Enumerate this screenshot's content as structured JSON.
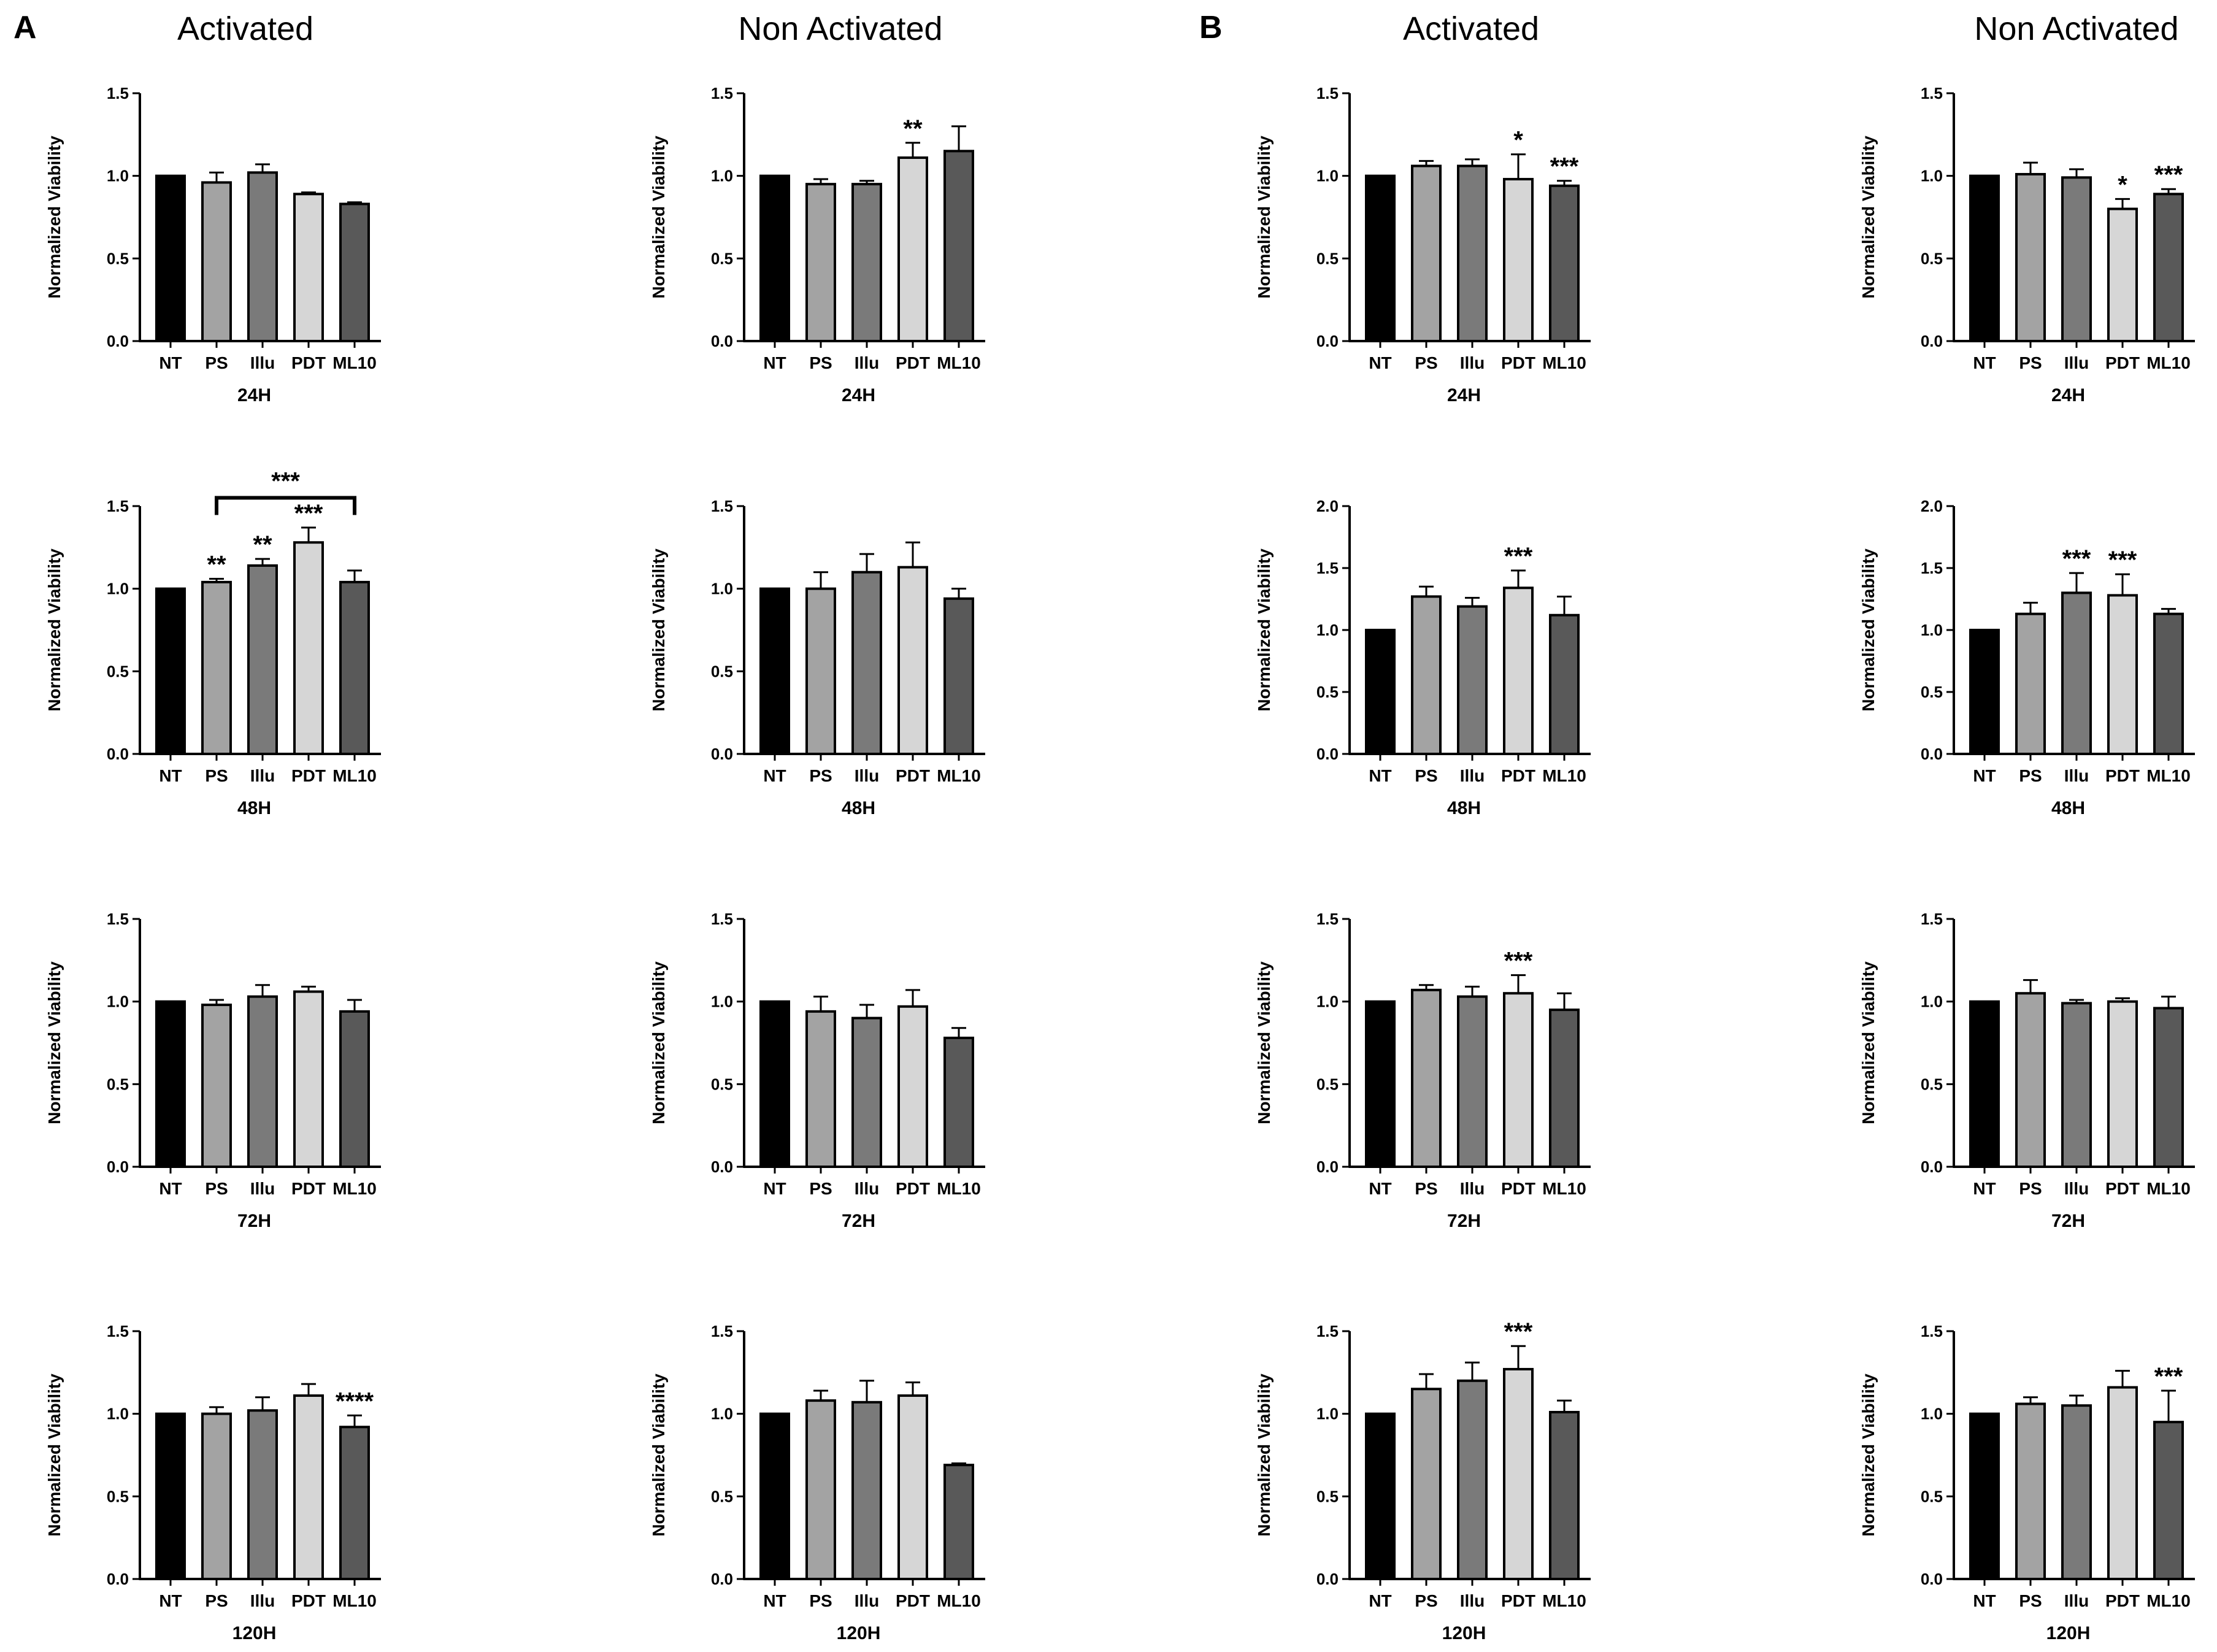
{
  "panels": [
    {
      "letter": "A",
      "columns": [
        "Activated",
        "Non Activated"
      ]
    },
    {
      "letter": "B",
      "columns": [
        "Activated",
        "Non Activated"
      ]
    }
  ],
  "colors": {
    "NT": "#000000",
    "PS": "#a3a3a3",
    "Illu": "#7a7a7a",
    "PDT": "#d6d6d6",
    "ML10": "#595959"
  },
  "chart_data": [
    {
      "type": "bar",
      "panel": "A",
      "column": "Activated",
      "xlabel": "24H",
      "ylabel": "Normalized Viability",
      "categories": [
        "NT",
        "PS",
        "Illu",
        "PDT",
        "ML10"
      ],
      "values": [
        1.0,
        0.96,
        1.02,
        0.89,
        0.83
      ],
      "errors": [
        0,
        0.06,
        0.05,
        0.01,
        0.01
      ],
      "significance": [
        "",
        "",
        "",
        "",
        ""
      ],
      "ylim": [
        0,
        1.5
      ],
      "yticks": [
        "0.0",
        "0.5",
        "1.0",
        "1.5"
      ],
      "bracket": null
    },
    {
      "type": "bar",
      "panel": "A",
      "column": "Non Activated",
      "xlabel": "24H",
      "ylabel": "Normalized Viability",
      "categories": [
        "NT",
        "PS",
        "Illu",
        "PDT",
        "ML10"
      ],
      "values": [
        1.0,
        0.95,
        0.95,
        1.11,
        1.15
      ],
      "errors": [
        0,
        0.03,
        0.02,
        0.09,
        0.15
      ],
      "significance": [
        "",
        "",
        "",
        "**",
        ""
      ],
      "ylim": [
        0,
        1.5
      ],
      "yticks": [
        "0.0",
        "0.5",
        "1.0",
        "1.5"
      ],
      "bracket": null
    },
    {
      "type": "bar",
      "panel": "B",
      "column": "Activated",
      "xlabel": "24H",
      "ylabel": "Normalized Viability",
      "categories": [
        "NT",
        "PS",
        "Illu",
        "PDT",
        "ML10"
      ],
      "values": [
        1.0,
        1.06,
        1.06,
        0.98,
        0.94
      ],
      "errors": [
        0,
        0.03,
        0.04,
        0.15,
        0.03
      ],
      "significance": [
        "",
        "",
        "",
        "*",
        "***"
      ],
      "ylim": [
        0,
        1.5
      ],
      "yticks": [
        "0.0",
        "0.5",
        "1.0",
        "1.5"
      ],
      "bracket": null
    },
    {
      "type": "bar",
      "panel": "B",
      "column": "Non Activated",
      "xlabel": "24H",
      "ylabel": "Normalized Viability",
      "categories": [
        "NT",
        "PS",
        "Illu",
        "PDT",
        "ML10"
      ],
      "values": [
        1.0,
        1.01,
        0.99,
        0.8,
        0.89
      ],
      "errors": [
        0,
        0.07,
        0.05,
        0.06,
        0.03
      ],
      "significance": [
        "",
        "",
        "",
        "*",
        "***"
      ],
      "ylim": [
        0,
        1.5
      ],
      "yticks": [
        "0.0",
        "0.5",
        "1.0",
        "1.5"
      ],
      "bracket": null
    },
    {
      "type": "bar",
      "panel": "A",
      "column": "Activated",
      "xlabel": "48H",
      "ylabel": "Normalized Viability",
      "categories": [
        "NT",
        "PS",
        "Illu",
        "PDT",
        "ML10"
      ],
      "values": [
        1.0,
        1.04,
        1.14,
        1.28,
        1.04
      ],
      "errors": [
        0,
        0.02,
        0.04,
        0.09,
        0.07
      ],
      "significance": [
        "",
        "**",
        "**",
        "***",
        ""
      ],
      "ylim": [
        0,
        1.5
      ],
      "yticks": [
        "0.0",
        "0.5",
        "1.0",
        "1.5"
      ],
      "bracket": {
        "from": "PS",
        "to": "ML10",
        "y": 1.55,
        "label": "***"
      }
    },
    {
      "type": "bar",
      "panel": "A",
      "column": "Non Activated",
      "xlabel": "48H",
      "ylabel": "Normalized Viability",
      "categories": [
        "NT",
        "PS",
        "Illu",
        "PDT",
        "ML10"
      ],
      "values": [
        1.0,
        1.0,
        1.1,
        1.13,
        0.94
      ],
      "errors": [
        0,
        0.1,
        0.11,
        0.15,
        0.06
      ],
      "significance": [
        "",
        "",
        "",
        "",
        ""
      ],
      "ylim": [
        0,
        1.5
      ],
      "yticks": [
        "0.0",
        "0.5",
        "1.0",
        "1.5"
      ],
      "bracket": null
    },
    {
      "type": "bar",
      "panel": "B",
      "column": "Activated",
      "xlabel": "48H",
      "ylabel": "Normalized Viability",
      "categories": [
        "NT",
        "PS",
        "Illu",
        "PDT",
        "ML10"
      ],
      "values": [
        1.0,
        1.27,
        1.19,
        1.34,
        1.12
      ],
      "errors": [
        0,
        0.08,
        0.07,
        0.14,
        0.15
      ],
      "significance": [
        "",
        "",
        "",
        "***",
        ""
      ],
      "ylim": [
        0,
        2.0
      ],
      "yticks": [
        "0.0",
        "0.5",
        "1.0",
        "1.5",
        "2.0"
      ],
      "bracket": null
    },
    {
      "type": "bar",
      "panel": "B",
      "column": "Non Activated",
      "xlabel": "48H",
      "ylabel": "Normalized Viability",
      "categories": [
        "NT",
        "PS",
        "Illu",
        "PDT",
        "ML10"
      ],
      "values": [
        1.0,
        1.13,
        1.3,
        1.28,
        1.13
      ],
      "errors": [
        0,
        0.09,
        0.16,
        0.17,
        0.04
      ],
      "significance": [
        "",
        "",
        "***",
        "***",
        ""
      ],
      "ylim": [
        0,
        2.0
      ],
      "yticks": [
        "0.0",
        "0.5",
        "1.0",
        "1.5",
        "2.0"
      ],
      "bracket": null
    },
    {
      "type": "bar",
      "panel": "A",
      "column": "Activated",
      "xlabel": "72H",
      "ylabel": "Normalized Viability",
      "categories": [
        "NT",
        "PS",
        "Illu",
        "PDT",
        "ML10"
      ],
      "values": [
        1.0,
        0.98,
        1.03,
        1.06,
        0.94
      ],
      "errors": [
        0,
        0.03,
        0.07,
        0.03,
        0.07
      ],
      "significance": [
        "",
        "",
        "",
        "",
        ""
      ],
      "ylim": [
        0,
        1.5
      ],
      "yticks": [
        "0.0",
        "0.5",
        "1.0",
        "1.5"
      ],
      "bracket": null
    },
    {
      "type": "bar",
      "panel": "A",
      "column": "Non Activated",
      "xlabel": "72H",
      "ylabel": "Normalized Viability",
      "categories": [
        "NT",
        "PS",
        "Illu",
        "PDT",
        "ML10"
      ],
      "values": [
        1.0,
        0.94,
        0.9,
        0.97,
        0.78
      ],
      "errors": [
        0,
        0.09,
        0.08,
        0.1,
        0.06
      ],
      "significance": [
        "",
        "",
        "",
        "",
        ""
      ],
      "ylim": [
        0,
        1.5
      ],
      "yticks": [
        "0.0",
        "0.5",
        "1.0",
        "1.5"
      ],
      "bracket": null
    },
    {
      "type": "bar",
      "panel": "B",
      "column": "Activated",
      "xlabel": "72H",
      "ylabel": "Normalized Viability",
      "categories": [
        "NT",
        "PS",
        "Illu",
        "PDT",
        "ML10"
      ],
      "values": [
        1.0,
        1.07,
        1.03,
        1.05,
        0.95
      ],
      "errors": [
        0,
        0.03,
        0.06,
        0.11,
        0.1
      ],
      "significance": [
        "",
        "",
        "",
        "***",
        ""
      ],
      "ylim": [
        0,
        1.5
      ],
      "yticks": [
        "0.0",
        "0.5",
        "1.0",
        "1.5"
      ],
      "bracket": null
    },
    {
      "type": "bar",
      "panel": "B",
      "column": "Non Activated",
      "xlabel": "72H",
      "ylabel": "Normalized Viability",
      "categories": [
        "NT",
        "PS",
        "Illu",
        "PDT",
        "ML10"
      ],
      "values": [
        1.0,
        1.05,
        0.99,
        1.0,
        0.96
      ],
      "errors": [
        0,
        0.08,
        0.02,
        0.02,
        0.07
      ],
      "significance": [
        "",
        "",
        "",
        "",
        ""
      ],
      "ylim": [
        0,
        1.5
      ],
      "yticks": [
        "0.0",
        "0.5",
        "1.0",
        "1.5"
      ],
      "bracket": null
    },
    {
      "type": "bar",
      "panel": "A",
      "column": "Activated",
      "xlabel": "120H",
      "ylabel": "Normalized Viability",
      "categories": [
        "NT",
        "PS",
        "Illu",
        "PDT",
        "ML10"
      ],
      "values": [
        1.0,
        1.0,
        1.02,
        1.11,
        0.92
      ],
      "errors": [
        0,
        0.04,
        0.08,
        0.07,
        0.07
      ],
      "significance": [
        "",
        "",
        "",
        "",
        "****"
      ],
      "ylim": [
        0,
        1.5
      ],
      "yticks": [
        "0.0",
        "0.5",
        "1.0",
        "1.5"
      ],
      "bracket": null
    },
    {
      "type": "bar",
      "panel": "A",
      "column": "Non Activated",
      "xlabel": "120H",
      "ylabel": "Normalized Viability",
      "categories": [
        "NT",
        "PS",
        "Illu",
        "PDT",
        "ML10"
      ],
      "values": [
        1.0,
        1.08,
        1.07,
        1.11,
        0.69
      ],
      "errors": [
        0,
        0.06,
        0.13,
        0.08,
        0.01
      ],
      "significance": [
        "",
        "",
        "",
        "",
        ""
      ],
      "ylim": [
        0,
        1.5
      ],
      "yticks": [
        "0.0",
        "0.5",
        "1.0",
        "1.5"
      ],
      "bracket": null
    },
    {
      "type": "bar",
      "panel": "B",
      "column": "Activated",
      "xlabel": "120H",
      "ylabel": "Normalized Viability",
      "categories": [
        "NT",
        "PS",
        "Illu",
        "PDT",
        "ML10"
      ],
      "values": [
        1.0,
        1.15,
        1.2,
        1.27,
        1.01
      ],
      "errors": [
        0,
        0.09,
        0.11,
        0.14,
        0.07
      ],
      "significance": [
        "",
        "",
        "",
        "***",
        ""
      ],
      "ylim": [
        0,
        1.5
      ],
      "yticks": [
        "0.0",
        "0.5",
        "1.0",
        "1.5"
      ],
      "bracket": null
    },
    {
      "type": "bar",
      "panel": "B",
      "column": "Non Activated",
      "xlabel": "120H",
      "ylabel": "Normalized Viability",
      "categories": [
        "NT",
        "PS",
        "Illu",
        "PDT",
        "ML10"
      ],
      "values": [
        1.0,
        1.06,
        1.05,
        1.16,
        0.95
      ],
      "errors": [
        0,
        0.04,
        0.06,
        0.1,
        0.19
      ],
      "significance": [
        "",
        "",
        "",
        "",
        "***"
      ],
      "ylim": [
        0,
        1.5
      ],
      "yticks": [
        "0.0",
        "0.5",
        "1.0",
        "1.5"
      ],
      "bracket": null
    }
  ]
}
